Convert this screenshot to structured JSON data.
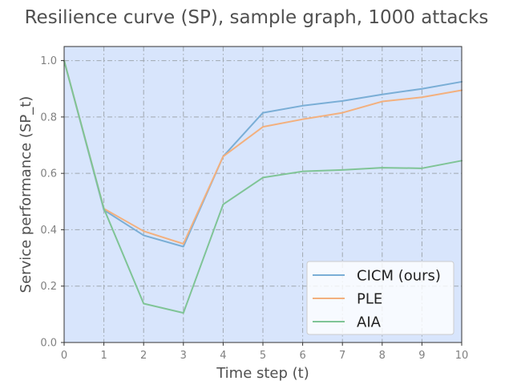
{
  "chart_data": {
    "type": "line",
    "title": "Resilience curve (SP), sample graph, 1000 attacks",
    "xlabel": "Time step (t)",
    "ylabel": "Service performance (SP_t)",
    "xlim": [
      0,
      10
    ],
    "ylim": [
      0,
      1.05
    ],
    "xticks": [
      "0",
      "1",
      "2",
      "3",
      "4",
      "5",
      "6",
      "7",
      "8",
      "9",
      "10"
    ],
    "yticks": [
      "0.0",
      "0.2",
      "0.4",
      "0.6",
      "0.8",
      "1.0"
    ],
    "grid": true,
    "legend_position": "lower-right",
    "x": [
      0,
      1,
      2,
      3,
      4,
      5,
      6,
      7,
      8,
      9,
      10
    ],
    "series": [
      {
        "name": "CICM (ours)",
        "color": "#7aaed6",
        "values": [
          1.0,
          0.47,
          0.38,
          0.34,
          0.66,
          0.815,
          0.84,
          0.857,
          0.88,
          0.9,
          0.925
        ]
      },
      {
        "name": "PLE",
        "color": "#f3b07e",
        "values": [
          1.0,
          0.475,
          0.395,
          0.35,
          0.66,
          0.765,
          0.792,
          0.815,
          0.855,
          0.87,
          0.895
        ]
      },
      {
        "name": "AIA",
        "color": "#7fc496",
        "values": [
          1.0,
          0.475,
          0.138,
          0.105,
          0.49,
          0.585,
          0.607,
          0.612,
          0.62,
          0.618,
          0.645
        ]
      }
    ],
    "colors": {
      "plot_background": "#d8e5fc",
      "grid": "#a0a8b0"
    }
  }
}
